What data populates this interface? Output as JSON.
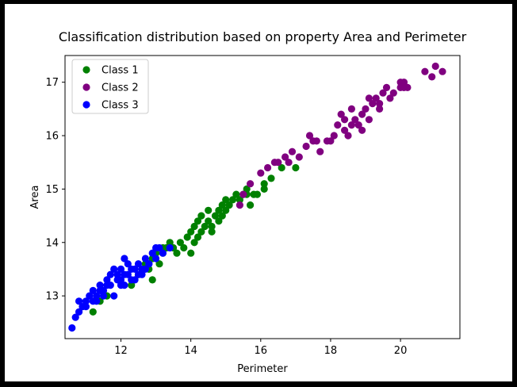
{
  "chart_data": {
    "type": "scatter",
    "title": "Classification distribution based on property Area and Perimeter",
    "xlabel": "Perimeter",
    "ylabel": "Area",
    "xlim": [
      10.4,
      21.7
    ],
    "ylim": [
      12.2,
      17.5
    ],
    "xticks": [
      12,
      14,
      16,
      18,
      20
    ],
    "yticks": [
      13,
      14,
      15,
      16,
      17
    ],
    "legend_position": "upper-left",
    "grid": false,
    "series": [
      {
        "name": "Class 1",
        "color": "#008000",
        "points": [
          [
            11.2,
            12.7
          ],
          [
            11.4,
            12.9
          ],
          [
            11.6,
            13.0
          ],
          [
            12.3,
            13.2
          ],
          [
            12.5,
            13.4
          ],
          [
            12.7,
            13.6
          ],
          [
            12.8,
            13.5
          ],
          [
            12.9,
            13.7
          ],
          [
            13.0,
            13.8
          ],
          [
            13.1,
            13.6
          ],
          [
            13.2,
            13.8
          ],
          [
            13.3,
            13.9
          ],
          [
            13.4,
            14.0
          ],
          [
            13.5,
            13.9
          ],
          [
            13.7,
            14.0
          ],
          [
            13.8,
            13.9
          ],
          [
            13.9,
            14.1
          ],
          [
            14.0,
            14.2
          ],
          [
            14.0,
            13.8
          ],
          [
            14.1,
            14.3
          ],
          [
            14.2,
            14.4
          ],
          [
            14.3,
            14.2
          ],
          [
            14.4,
            14.3
          ],
          [
            14.5,
            14.4
          ],
          [
            14.5,
            14.6
          ],
          [
            14.6,
            14.3
          ],
          [
            14.7,
            14.5
          ],
          [
            14.8,
            14.6
          ],
          [
            14.8,
            14.4
          ],
          [
            14.9,
            14.7
          ],
          [
            15.0,
            14.6
          ],
          [
            15.0,
            14.8
          ],
          [
            15.1,
            14.7
          ],
          [
            15.2,
            14.8
          ],
          [
            15.3,
            14.9
          ],
          [
            15.4,
            14.8
          ],
          [
            15.5,
            14.9
          ],
          [
            15.6,
            15.0
          ],
          [
            15.7,
            14.7
          ],
          [
            15.8,
            14.9
          ],
          [
            15.9,
            14.9
          ],
          [
            16.1,
            15.0
          ],
          [
            16.3,
            15.2
          ],
          [
            16.6,
            15.4
          ],
          [
            17.0,
            15.4
          ],
          [
            14.2,
            14.1
          ],
          [
            14.6,
            14.2
          ],
          [
            14.3,
            14.5
          ],
          [
            13.6,
            13.8
          ],
          [
            14.9,
            14.5
          ],
          [
            15.6,
            14.9
          ],
          [
            16.1,
            15.1
          ],
          [
            14.1,
            14.0
          ],
          [
            13.2,
            13.9
          ],
          [
            12.9,
            13.3
          ]
        ]
      },
      {
        "name": "Class 2",
        "color": "#800080",
        "points": [
          [
            15.4,
            14.7
          ],
          [
            15.5,
            14.9
          ],
          [
            15.7,
            15.1
          ],
          [
            16.0,
            15.3
          ],
          [
            16.2,
            15.4
          ],
          [
            16.5,
            15.5
          ],
          [
            16.7,
            15.6
          ],
          [
            16.9,
            15.7
          ],
          [
            17.1,
            15.6
          ],
          [
            17.3,
            15.8
          ],
          [
            17.5,
            15.9
          ],
          [
            17.7,
            15.7
          ],
          [
            17.9,
            15.9
          ],
          [
            18.1,
            16.0
          ],
          [
            18.2,
            16.2
          ],
          [
            18.3,
            16.4
          ],
          [
            18.4,
            16.1
          ],
          [
            18.5,
            16.0
          ],
          [
            18.6,
            16.2
          ],
          [
            18.7,
            16.3
          ],
          [
            18.8,
            16.2
          ],
          [
            18.9,
            16.4
          ],
          [
            19.0,
            16.5
          ],
          [
            19.1,
            16.3
          ],
          [
            19.2,
            16.6
          ],
          [
            19.3,
            16.7
          ],
          [
            19.4,
            16.5
          ],
          [
            19.5,
            16.8
          ],
          [
            19.6,
            16.9
          ],
          [
            19.8,
            16.8
          ],
          [
            20.0,
            16.9
          ],
          [
            20.1,
            17.0
          ],
          [
            20.2,
            16.9
          ],
          [
            20.7,
            17.2
          ],
          [
            20.9,
            17.1
          ],
          [
            21.0,
            17.3
          ],
          [
            21.2,
            17.2
          ],
          [
            16.4,
            15.5
          ],
          [
            17.4,
            16.0
          ],
          [
            18.0,
            15.9
          ],
          [
            18.9,
            16.1
          ],
          [
            19.1,
            16.7
          ],
          [
            18.6,
            16.5
          ],
          [
            19.7,
            16.7
          ],
          [
            20.0,
            17.0
          ],
          [
            17.6,
            15.9
          ],
          [
            16.8,
            15.5
          ],
          [
            18.4,
            16.3
          ],
          [
            19.4,
            16.6
          ],
          [
            20.1,
            16.9
          ]
        ]
      },
      {
        "name": "Class 3",
        "color": "#0000ff",
        "points": [
          [
            10.6,
            12.4
          ],
          [
            10.7,
            12.6
          ],
          [
            10.8,
            12.7
          ],
          [
            10.8,
            12.9
          ],
          [
            10.9,
            12.8
          ],
          [
            11.0,
            12.9
          ],
          [
            11.1,
            13.0
          ],
          [
            11.2,
            12.9
          ],
          [
            11.2,
            13.1
          ],
          [
            11.3,
            13.0
          ],
          [
            11.4,
            13.2
          ],
          [
            11.5,
            13.1
          ],
          [
            11.6,
            13.3
          ],
          [
            11.7,
            13.2
          ],
          [
            11.8,
            13.0
          ],
          [
            11.9,
            13.4
          ],
          [
            12.0,
            13.3
          ],
          [
            12.0,
            13.5
          ],
          [
            12.1,
            13.2
          ],
          [
            12.1,
            13.7
          ],
          [
            12.2,
            13.4
          ],
          [
            12.3,
            13.3
          ],
          [
            12.4,
            13.5
          ],
          [
            12.5,
            13.6
          ],
          [
            12.6,
            13.4
          ],
          [
            12.7,
            13.7
          ],
          [
            12.8,
            13.6
          ],
          [
            12.9,
            13.8
          ],
          [
            13.0,
            13.7
          ],
          [
            13.1,
            13.9
          ],
          [
            13.2,
            13.8
          ],
          [
            13.4,
            13.9
          ],
          [
            11.3,
            12.9
          ],
          [
            11.5,
            13.0
          ],
          [
            11.8,
            13.5
          ],
          [
            12.0,
            13.2
          ],
          [
            12.2,
            13.6
          ],
          [
            12.4,
            13.3
          ],
          [
            12.6,
            13.5
          ],
          [
            12.8,
            13.6
          ],
          [
            11.0,
            12.8
          ],
          [
            11.9,
            13.3
          ],
          [
            12.3,
            13.5
          ],
          [
            12.5,
            13.4
          ],
          [
            12.1,
            13.4
          ],
          [
            11.7,
            13.4
          ],
          [
            11.4,
            13.1
          ],
          [
            12.7,
            13.5
          ],
          [
            13.0,
            13.9
          ],
          [
            11.6,
            13.2
          ]
        ]
      }
    ]
  }
}
